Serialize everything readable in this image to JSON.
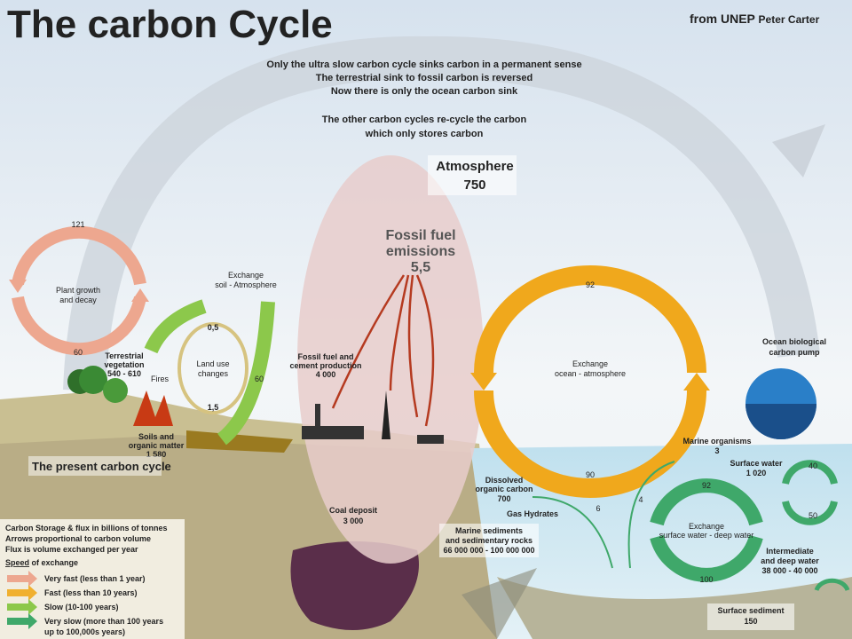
{
  "header": {
    "title": "The carbon Cycle",
    "credit": "from UNEP",
    "author": "Peter Carter"
  },
  "notes": [
    "Only the ultra slow carbon cycle sinks carbon in a permanent sense",
    "The terrestrial sink to fossil carbon is reversed",
    "Now there is only the ocean carbon sink",
    "The other carbon cycles  re-cycle the carbon",
    "which only stores carbon"
  ],
  "atmosphere": {
    "label": "Atmosphere",
    "value": "750"
  },
  "emissions": {
    "label": [
      "Fossil fuel",
      "emissions"
    ],
    "value": "5,5"
  },
  "land": {
    "plant_cycle": {
      "label": [
        "Plant growth",
        "and decay"
      ],
      "top": "121",
      "bottom": "60"
    },
    "soil_exchange": {
      "label": [
        "Exchange",
        "soil - Atmosphere"
      ],
      "value": "60"
    },
    "vegetation": {
      "label": [
        "Terrestrial",
        "vegetation"
      ],
      "value": "540 - 610"
    },
    "fires": "Fires",
    "land_use": {
      "label": [
        "Land use",
        "changes"
      ],
      "top": "0,5",
      "bottom": "1,5"
    },
    "soils": {
      "label": [
        "Soils and",
        "organic matter"
      ],
      "value": "1 580"
    },
    "caption": "The present carbon cycle",
    "fossil": {
      "label": [
        "Fossil fuel and",
        "cement production"
      ],
      "value": "4 000"
    },
    "coal": {
      "label": "Coal deposit",
      "value": "3 000"
    }
  },
  "ocean": {
    "exchange": {
      "label": [
        "Exchange",
        "ocean - atmosphere"
      ],
      "top": "92",
      "bottom": "90"
    },
    "pump": [
      "Ocean biological",
      "carbon pump"
    ],
    "marine_organisms": {
      "label": "Marine organisms",
      "value": "3"
    },
    "surface_water": {
      "label": "Surface water",
      "value": "1 020"
    },
    "dissolved": {
      "label": [
        "Dissolved",
        "organic carbon"
      ],
      "value": "700"
    },
    "gas_hydrates": "Gas Hydrates",
    "sediments": {
      "label": [
        "Marine sediments",
        "and sedimentary rocks"
      ],
      "value": "66 000 000 - 100 000 000"
    },
    "deep_exchange": {
      "label": [
        "Exchange",
        "surface water - deep water"
      ],
      "top": "92",
      "bottom": "100",
      "down": "6",
      "up": "4"
    },
    "small_cycle": {
      "top": "40",
      "bottom": "50"
    },
    "deep_water": {
      "label": [
        "Intermediate",
        "and deep water"
      ],
      "value": "38 000 - 40 000"
    },
    "surface_sediment": {
      "label": "Surface sediment",
      "value": "150"
    }
  },
  "legend": {
    "lines": [
      "Carbon Storage & flux in billions of tonnes",
      "Arrows proportional to carbon volume",
      "Flux is volume exchanged per year"
    ],
    "heading": [
      "Speed",
      " of exchange"
    ],
    "items": [
      [
        "Very fast (less than 1 year)"
      ],
      [
        "Fast (less than 10 years)"
      ],
      [
        "Slow (10-100 years)"
      ],
      [
        "Very slow (more than 100 years",
        "up to 100,000s years)"
      ]
    ]
  }
}
